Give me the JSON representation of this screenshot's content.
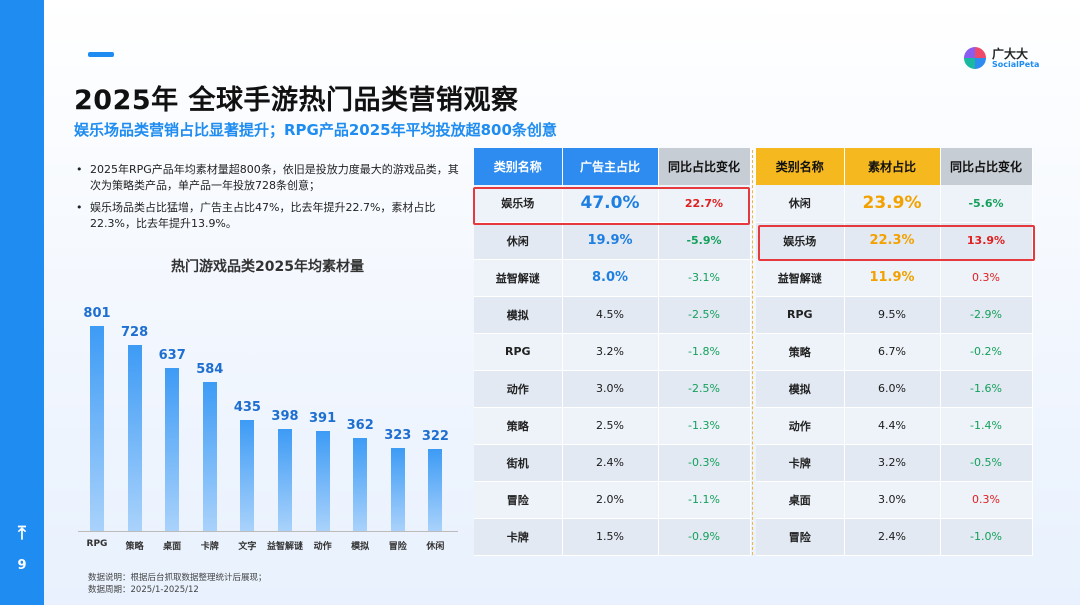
{
  "page": {
    "number": "9"
  },
  "header": {
    "title": "2025年 全球手游热门品类营销观察",
    "subtitle": "娱乐场品类营销占比显著提升；RPG产品2025年平均投放超800条创意"
  },
  "logo": {
    "cn": "广大大",
    "en": "SocialPeta"
  },
  "bullets": [
    "2025年RPG产品年均素材量超800条，依旧是投放力度最大的游戏品类，其次为策略类产品，单产品一年投放728条创意；",
    "娱乐场品类占比猛增，广告主占比47%，比去年提升22.7%，素材占比22.3%，比去年提升13.9%。"
  ],
  "chart_data": {
    "type": "bar",
    "title": "热门游戏品类2025年均素材量",
    "categories": [
      "RPG",
      "策略",
      "桌面",
      "卡牌",
      "文字",
      "益智解谜",
      "动作",
      "模拟",
      "冒险",
      "休闲"
    ],
    "values": [
      801,
      728,
      637,
      584,
      435,
      398,
      391,
      362,
      323,
      322
    ],
    "ylim": [
      0,
      900
    ],
    "xlabel": "",
    "ylabel": ""
  },
  "note": {
    "line1": "数据说明：根据后台抓取数据整理统计后展现；",
    "line2": "数据周期：2025/1-2025/12"
  },
  "left_table": {
    "headers": [
      "类别名称",
      "广告主占比",
      "同比占比变化"
    ],
    "rows": [
      [
        "娱乐场",
        "47.0%",
        "22.7%"
      ],
      [
        "休闲",
        "19.9%",
        "-5.9%"
      ],
      [
        "益智解谜",
        "8.0%",
        "-3.1%"
      ],
      [
        "模拟",
        "4.5%",
        "-2.5%"
      ],
      [
        "RPG",
        "3.2%",
        "-1.8%"
      ],
      [
        "动作",
        "3.0%",
        "-2.5%"
      ],
      [
        "策略",
        "2.5%",
        "-1.3%"
      ],
      [
        "街机",
        "2.4%",
        "-0.3%"
      ],
      [
        "冒险",
        "2.0%",
        "-1.1%"
      ],
      [
        "卡牌",
        "1.5%",
        "-0.9%"
      ]
    ]
  },
  "right_table": {
    "headers": [
      "类别名称",
      "素材占比",
      "同比占比变化"
    ],
    "rows": [
      [
        "休闲",
        "23.9%",
        "-5.6%"
      ],
      [
        "娱乐场",
        "22.3%",
        "13.9%"
      ],
      [
        "益智解谜",
        "11.9%",
        "0.3%"
      ],
      [
        "RPG",
        "9.5%",
        "-2.9%"
      ],
      [
        "策略",
        "6.7%",
        "-0.2%"
      ],
      [
        "模拟",
        "6.0%",
        "-1.6%"
      ],
      [
        "动作",
        "4.4%",
        "-1.4%"
      ],
      [
        "卡牌",
        "3.2%",
        "-0.5%"
      ],
      [
        "桌面",
        "3.0%",
        "0.3%"
      ],
      [
        "冒险",
        "2.4%",
        "-1.0%"
      ]
    ]
  },
  "colors": {
    "accent": "#1e8cf0",
    "gold": "#f5b81f",
    "red": "#e02020",
    "green": "#14a05a"
  }
}
